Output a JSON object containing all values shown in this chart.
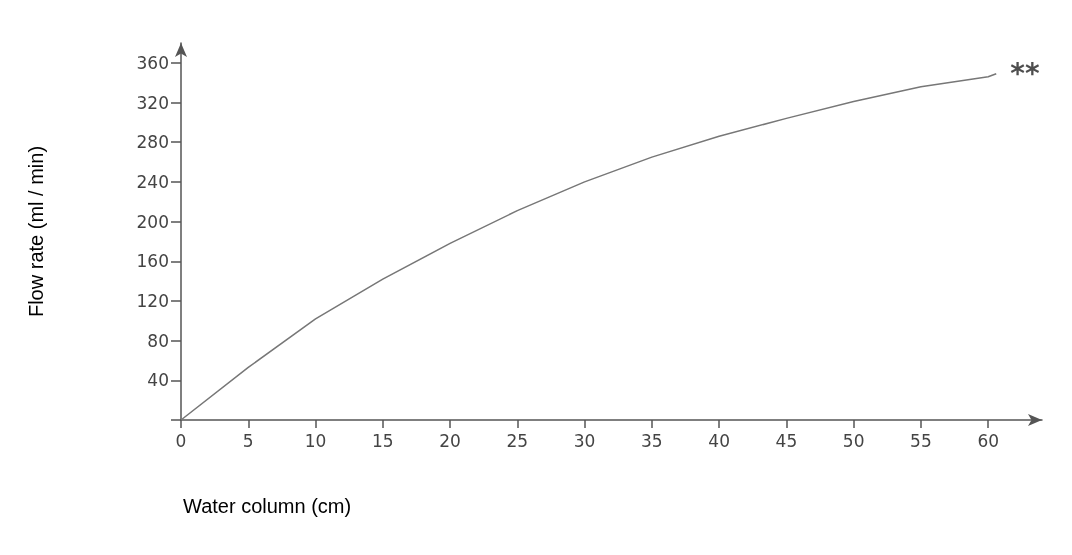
{
  "chart_data": {
    "type": "line",
    "xlabel": "Water column (cm)",
    "ylabel": "Flow rate (ml / min)",
    "x": [
      0,
      5,
      10,
      15,
      20,
      25,
      30,
      35,
      40,
      45,
      50,
      55,
      60,
      60.6
    ],
    "series": [
      {
        "color": "#777777",
        "values": [
          0,
          53,
          102,
          142,
          178,
          211,
          240,
          265,
          286,
          304,
          321,
          336,
          346,
          349
        ]
      }
    ],
    "xlim": [
      0,
      64
    ],
    "ylim": [
      0,
      380
    ],
    "xticks": [
      0,
      5,
      10,
      15,
      20,
      25,
      30,
      35,
      40,
      45,
      50,
      55,
      60
    ],
    "yticks": [
      {
        "value": 0,
        "label": null
      },
      40,
      80,
      120,
      160,
      200,
      240,
      280,
      320,
      360
    ],
    "annotations": [
      {
        "text": "**",
        "x": 60.6,
        "y": 349
      }
    ],
    "grid": false,
    "marker": "none",
    "line_style": "solid"
  }
}
